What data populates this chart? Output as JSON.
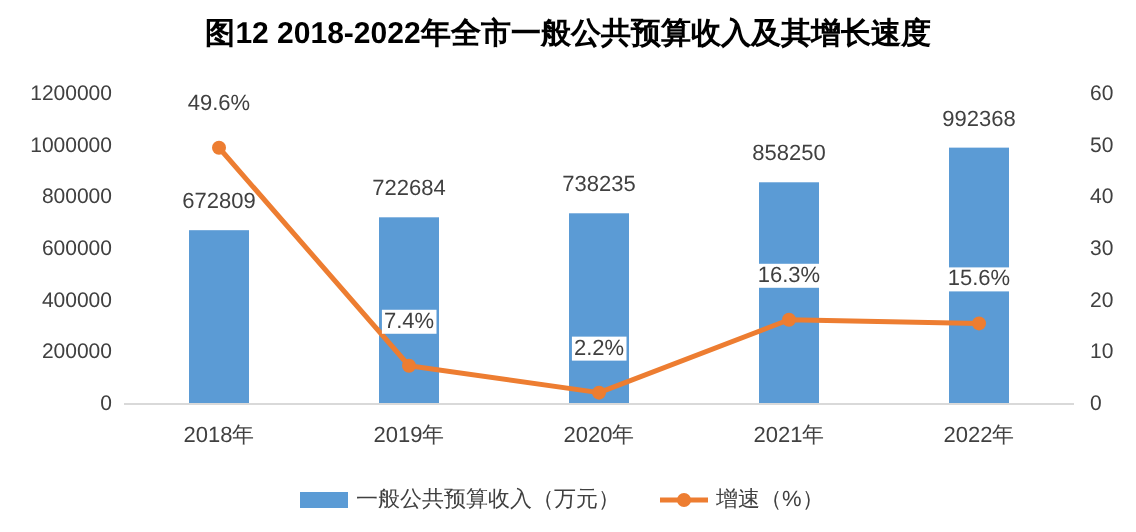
{
  "chart_data": {
    "type": "bar",
    "title": "图12  2018-2022年全市一般公共预算收入及其增长速度",
    "categories": [
      "2018年",
      "2019年",
      "2020年",
      "2021年",
      "2022年"
    ],
    "series": [
      {
        "name": "一般公共预算收入（万元）",
        "color": "#5b9bd5",
        "values": [
          672809,
          722684,
          738235,
          858250,
          992368
        ],
        "value_labels": [
          "672809",
          "722684",
          "738235",
          "858250",
          "992368"
        ]
      },
      {
        "name": "增速（%）",
        "type": "line",
        "axis": "y2",
        "color": "#ed7d31",
        "marker": "circle",
        "values": [
          49.6,
          7.4,
          2.2,
          16.3,
          15.6
        ],
        "value_labels": [
          "49.6%",
          "7.4%",
          "2.2%",
          "16.3%",
          "15.6%"
        ]
      }
    ],
    "ylim": [
      0,
      1200000
    ],
    "yticks": [
      0,
      200000,
      400000,
      600000,
      800000,
      1000000,
      1200000
    ],
    "y2lim": [
      0,
      60
    ],
    "y2ticks": [
      0,
      10,
      20,
      30,
      40,
      50,
      60
    ],
    "legend": "bottom"
  }
}
